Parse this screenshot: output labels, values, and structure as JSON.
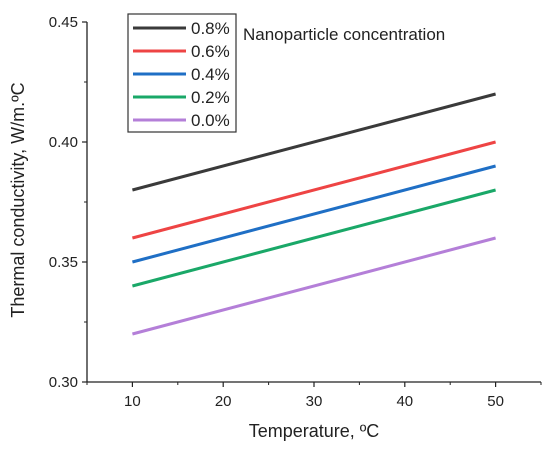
{
  "chart_data": {
    "type": "line",
    "title": "",
    "legend_title": "Nanoparticle concentration",
    "xlabel": "Temperature, ºC",
    "ylabel": "Thermal conductivity, W/m.ºC",
    "xlim": [
      5,
      55
    ],
    "ylim": [
      0.3,
      0.45
    ],
    "xticks": [
      10,
      20,
      30,
      40,
      50
    ],
    "yticks": [
      "0.30",
      "0.35",
      "0.40",
      "0.45"
    ],
    "grid": false,
    "legend_position": "top-left",
    "series": [
      {
        "name": "0.8%",
        "color": "#3a3a3a",
        "x": [
          10,
          50
        ],
        "y": [
          0.38,
          0.42
        ]
      },
      {
        "name": "0.6%",
        "color": "#ee4444",
        "x": [
          10,
          50
        ],
        "y": [
          0.36,
          0.4
        ]
      },
      {
        "name": "0.4%",
        "color": "#1f6fc5",
        "x": [
          10,
          50
        ],
        "y": [
          0.35,
          0.39
        ]
      },
      {
        "name": "0.2%",
        "color": "#1aa868",
        "x": [
          10,
          50
        ],
        "y": [
          0.34,
          0.38
        ]
      },
      {
        "name": "0.0%",
        "color": "#b47fd8",
        "x": [
          10,
          50
        ],
        "y": [
          0.32,
          0.36
        ]
      }
    ]
  }
}
